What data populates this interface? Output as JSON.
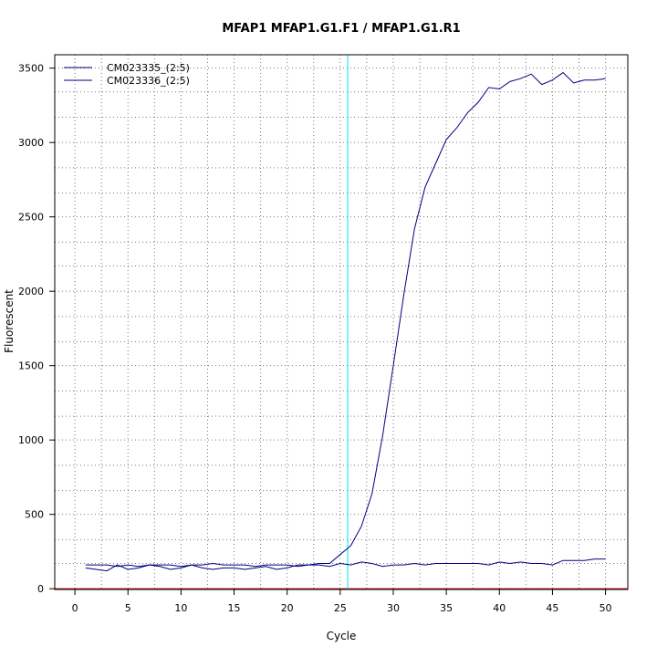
{
  "chart_data": {
    "type": "line",
    "title": "MFAP1  MFAP1.G1.F1 / MFAP1.G1.R1",
    "xlabel": "Cycle",
    "ylabel": "Fluorescent",
    "xlim": [
      -1.9,
      52.1
    ],
    "ylim": [
      -5,
      3590
    ],
    "x_ticks": [
      0,
      5,
      10,
      15,
      20,
      25,
      30,
      35,
      40,
      45,
      50
    ],
    "y_ticks": [
      0,
      500,
      1000,
      1500,
      2000,
      2500,
      3000,
      3500
    ],
    "x_minor_grid": [
      2.5,
      7.5,
      12.5,
      17.5,
      22.5,
      27.5,
      32.5,
      37.5,
      42.5,
      47.5
    ],
    "y_minor_grid": [
      170,
      330,
      660,
      830,
      1160,
      1330,
      1660,
      1830,
      2170,
      2330,
      2660,
      2830,
      3170,
      3340
    ],
    "grid": true,
    "legend_position": "top-left",
    "threshold": {
      "x": 25.7,
      "color": "#00e5ee"
    },
    "baseline": {
      "y": 0,
      "color": "#cc0000"
    },
    "series": [
      {
        "name": "CM023335_(2:5)",
        "color": "#000080",
        "x": [
          1,
          2,
          3,
          4,
          5,
          6,
          7,
          8,
          9,
          10,
          11,
          12,
          13,
          14,
          15,
          16,
          17,
          18,
          19,
          20,
          21,
          22,
          23,
          24,
          25,
          26,
          27,
          28,
          29,
          30,
          31,
          32,
          33,
          34,
          35,
          36,
          37,
          38,
          39,
          40,
          41,
          42,
          43,
          44,
          45,
          46,
          47,
          48,
          49,
          50
        ],
        "values": [
          140,
          130,
          120,
          160,
          130,
          140,
          160,
          150,
          130,
          140,
          160,
          140,
          130,
          140,
          140,
          130,
          140,
          150,
          130,
          140,
          160,
          160,
          170,
          170,
          230,
          290,
          420,
          640,
          1030,
          1500,
          1980,
          2420,
          2700,
          2860,
          3020,
          3100,
          3200,
          3270,
          3370,
          3360,
          3410,
          3430,
          3460,
          3390,
          3420,
          3470,
          3400,
          3420,
          3420,
          3430
        ]
      },
      {
        "name": "CM023336_(2:5)",
        "color": "#000080",
        "x": [
          1,
          2,
          3,
          4,
          5,
          6,
          7,
          8,
          9,
          10,
          11,
          12,
          13,
          14,
          15,
          16,
          17,
          18,
          19,
          20,
          21,
          22,
          23,
          24,
          25,
          26,
          27,
          28,
          29,
          30,
          31,
          32,
          33,
          34,
          35,
          36,
          37,
          38,
          39,
          40,
          41,
          42,
          43,
          44,
          45,
          46,
          47,
          48,
          49,
          50
        ],
        "values": [
          160,
          160,
          160,
          150,
          160,
          150,
          160,
          160,
          160,
          150,
          160,
          160,
          170,
          160,
          160,
          160,
          150,
          160,
          160,
          160,
          150,
          160,
          160,
          150,
          170,
          160,
          180,
          170,
          150,
          160,
          160,
          170,
          160,
          170,
          170,
          170,
          170,
          170,
          160,
          180,
          170,
          180,
          170,
          170,
          160,
          190,
          190,
          190,
          200,
          200
        ]
      }
    ]
  }
}
